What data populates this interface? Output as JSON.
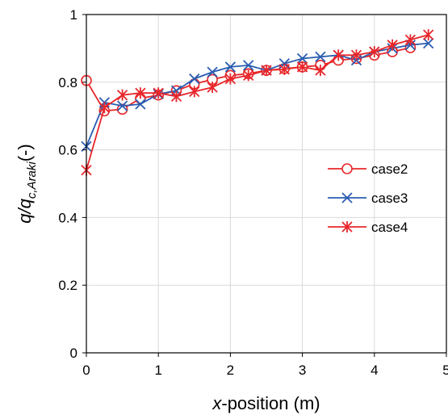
{
  "chart_data": {
    "type": "line",
    "xlabel_italic": "x",
    "xlabel_rest": "-position (m)",
    "ylabel_main": "q/q",
    "ylabel_sub": "c,Araki",
    "ylabel_unit": "(-)",
    "xlim": [
      0,
      5
    ],
    "ylim": [
      0,
      1
    ],
    "xticks": [
      0,
      1,
      2,
      3,
      4,
      5
    ],
    "xtick_labels": [
      "0",
      "1",
      "2",
      "3",
      "4",
      "5"
    ],
    "yticks": [
      0,
      0.2,
      0.4,
      0.6,
      0.8,
      1
    ],
    "ytick_labels": [
      "0",
      "0.2",
      "0.4",
      "0.6",
      "0.8",
      "1"
    ],
    "grid": true,
    "legend_position": "right-middle",
    "series": [
      {
        "name": "case2",
        "color": "#e8262a",
        "marker": "circle",
        "x": [
          0,
          0.25,
          0.5,
          0.75,
          1.0,
          1.25,
          1.5,
          1.75,
          2.0,
          2.25,
          2.5,
          2.75,
          3.0,
          3.25,
          3.5,
          3.75,
          4.0,
          4.25,
          4.5
        ],
        "y": [
          0.805,
          0.715,
          0.72,
          0.752,
          0.762,
          0.775,
          0.795,
          0.808,
          0.82,
          0.825,
          0.835,
          0.84,
          0.845,
          0.85,
          0.865,
          0.87,
          0.88,
          0.89,
          0.902
        ]
      },
      {
        "name": "case3",
        "color": "#2a5db0",
        "marker": "x",
        "x": [
          0,
          0.25,
          0.5,
          0.75,
          1.0,
          1.25,
          1.5,
          1.75,
          2.0,
          2.25,
          2.5,
          2.75,
          3.0,
          3.25,
          3.5,
          3.75,
          4.0,
          4.25,
          4.5,
          4.75
        ],
        "y": [
          0.61,
          0.74,
          0.73,
          0.735,
          0.765,
          0.775,
          0.81,
          0.83,
          0.845,
          0.85,
          0.835,
          0.855,
          0.87,
          0.875,
          0.88,
          0.865,
          0.89,
          0.9,
          0.91,
          0.915
        ]
      },
      {
        "name": "case4",
        "color": "#e8262a",
        "marker": "asterisk",
        "x": [
          0,
          0.25,
          0.5,
          0.75,
          1.0,
          1.25,
          1.5,
          1.75,
          2.0,
          2.25,
          2.5,
          2.75,
          3.0,
          3.25,
          3.5,
          3.75,
          4.0,
          4.25,
          4.5,
          4.75
        ],
        "y": [
          0.54,
          0.725,
          0.762,
          0.768,
          0.768,
          0.758,
          0.772,
          0.785,
          0.81,
          0.82,
          0.835,
          0.838,
          0.845,
          0.835,
          0.88,
          0.88,
          0.89,
          0.91,
          0.925,
          0.94
        ]
      }
    ]
  }
}
